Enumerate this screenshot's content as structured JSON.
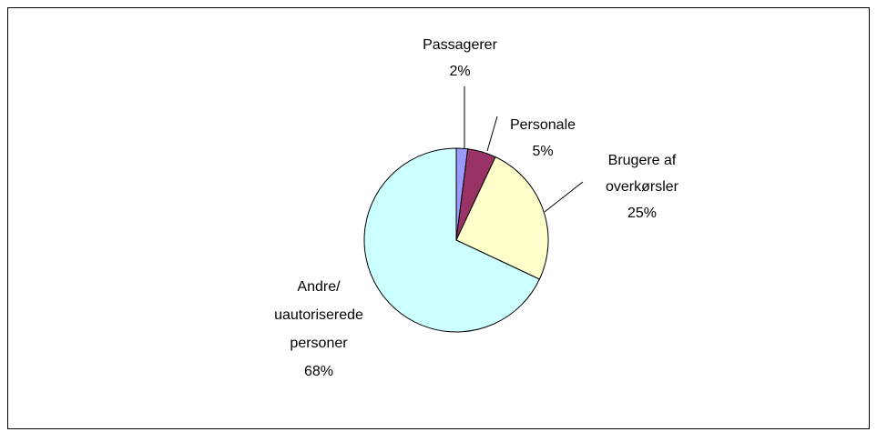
{
  "chart_data": {
    "type": "pie",
    "categories": [
      "Passagerer",
      "Personale",
      "Brugere af\noverkørsler",
      "Andre/\nuautoriserede\npersoner"
    ],
    "values": [
      2,
      5,
      25,
      68
    ],
    "value_labels": [
      "2%",
      "5%",
      "25%",
      "68%"
    ],
    "colors": [
      "#9999ff",
      "#993366",
      "#ffffcc",
      "#ccffff"
    ]
  }
}
